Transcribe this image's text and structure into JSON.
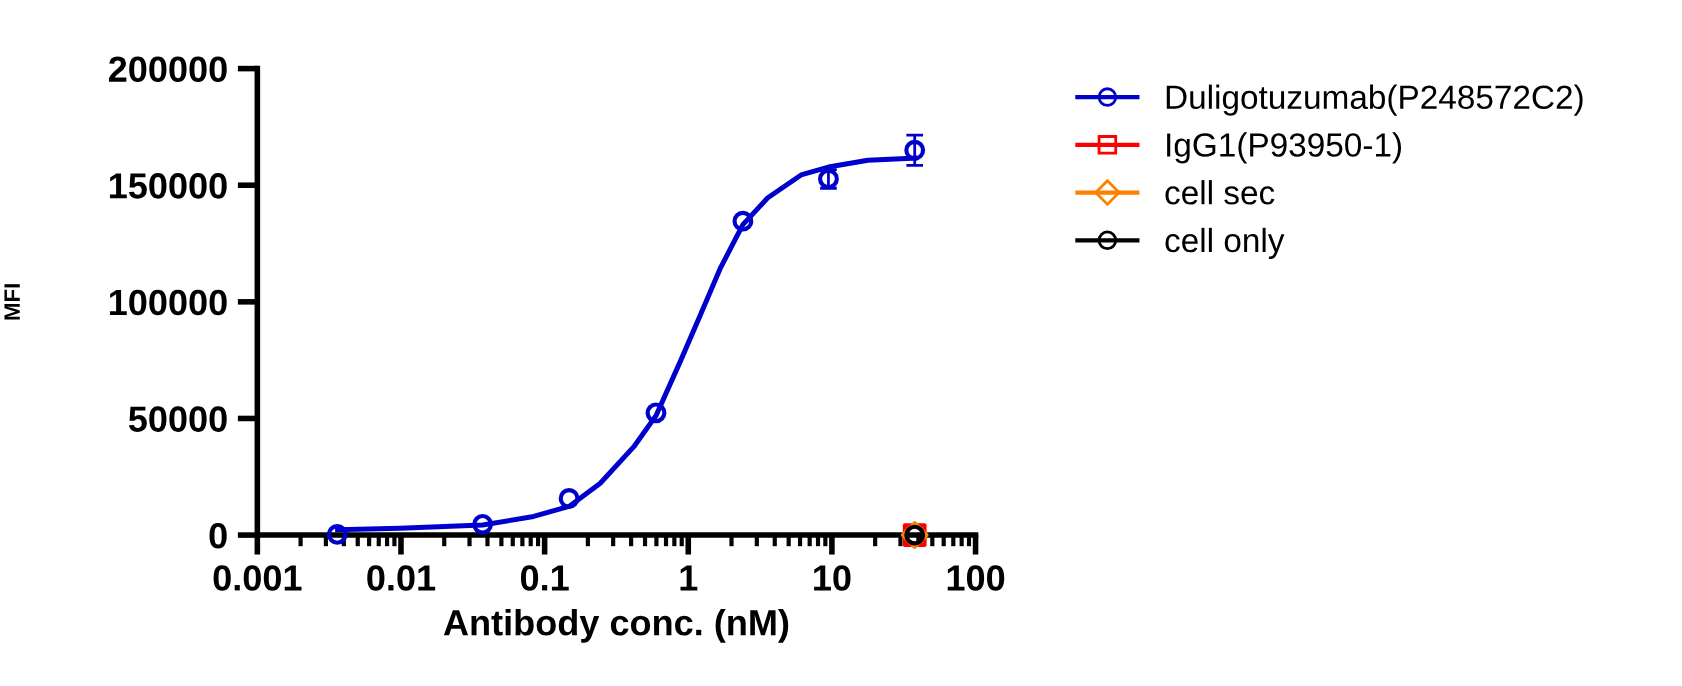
{
  "chart_data": {
    "type": "scatter",
    "xlabel": "Antibody conc. (nM)",
    "ylabel": "MFI",
    "log": "x",
    "xlim": [
      0.001,
      100
    ],
    "xticks": [
      0.001,
      0.01,
      0.1,
      1,
      10,
      100
    ],
    "ylim": [
      0,
      200000
    ],
    "yticks": [
      0,
      50000,
      100000,
      150000,
      200000
    ],
    "grid": false,
    "legend": "right",
    "series": [
      {
        "name": "Duligotuzumab(P248572C2)",
        "color": "#0000cc",
        "marker": "circle",
        "x": [
          0.0036,
          0.037,
          0.148,
          0.596,
          2.4,
          9.46,
          37.7
        ],
        "values": [
          300,
          4600,
          15700,
          52400,
          134600,
          152700,
          165000
        ],
        "errors": [
          null,
          null,
          null,
          null,
          null,
          4000,
          6500
        ]
      },
      {
        "name": "IgG1(P93950-1)",
        "color": "#ff0000",
        "marker": "square",
        "x": [
          37.7
        ],
        "values": [
          0
        ]
      },
      {
        "name": "cell sec",
        "color": "#ff8000",
        "marker": "diamond",
        "x": [
          37.7
        ],
        "values": [
          0
        ]
      },
      {
        "name": "cell only",
        "color": "#000000",
        "marker": "circle",
        "x": [
          37.7
        ],
        "values": [
          0
        ]
      },
      {
        "type": "line",
        "color": "#0000cc",
        "marker": "none",
        "x": [
          0.00362,
          0.00982,
          0.037,
          0.0838,
          0.148,
          0.244,
          0.418,
          0.596,
          0.885,
          1.22,
          1.68,
          2.4,
          3.56,
          6.1,
          9.46,
          17.8,
          37.7
        ],
        "values": [
          2300,
          2900,
          4300,
          8000,
          12300,
          22200,
          37900,
          51200,
          74800,
          94700,
          114700,
          133100,
          144500,
          154400,
          157800,
          160700,
          161600
        ]
      }
    ]
  }
}
